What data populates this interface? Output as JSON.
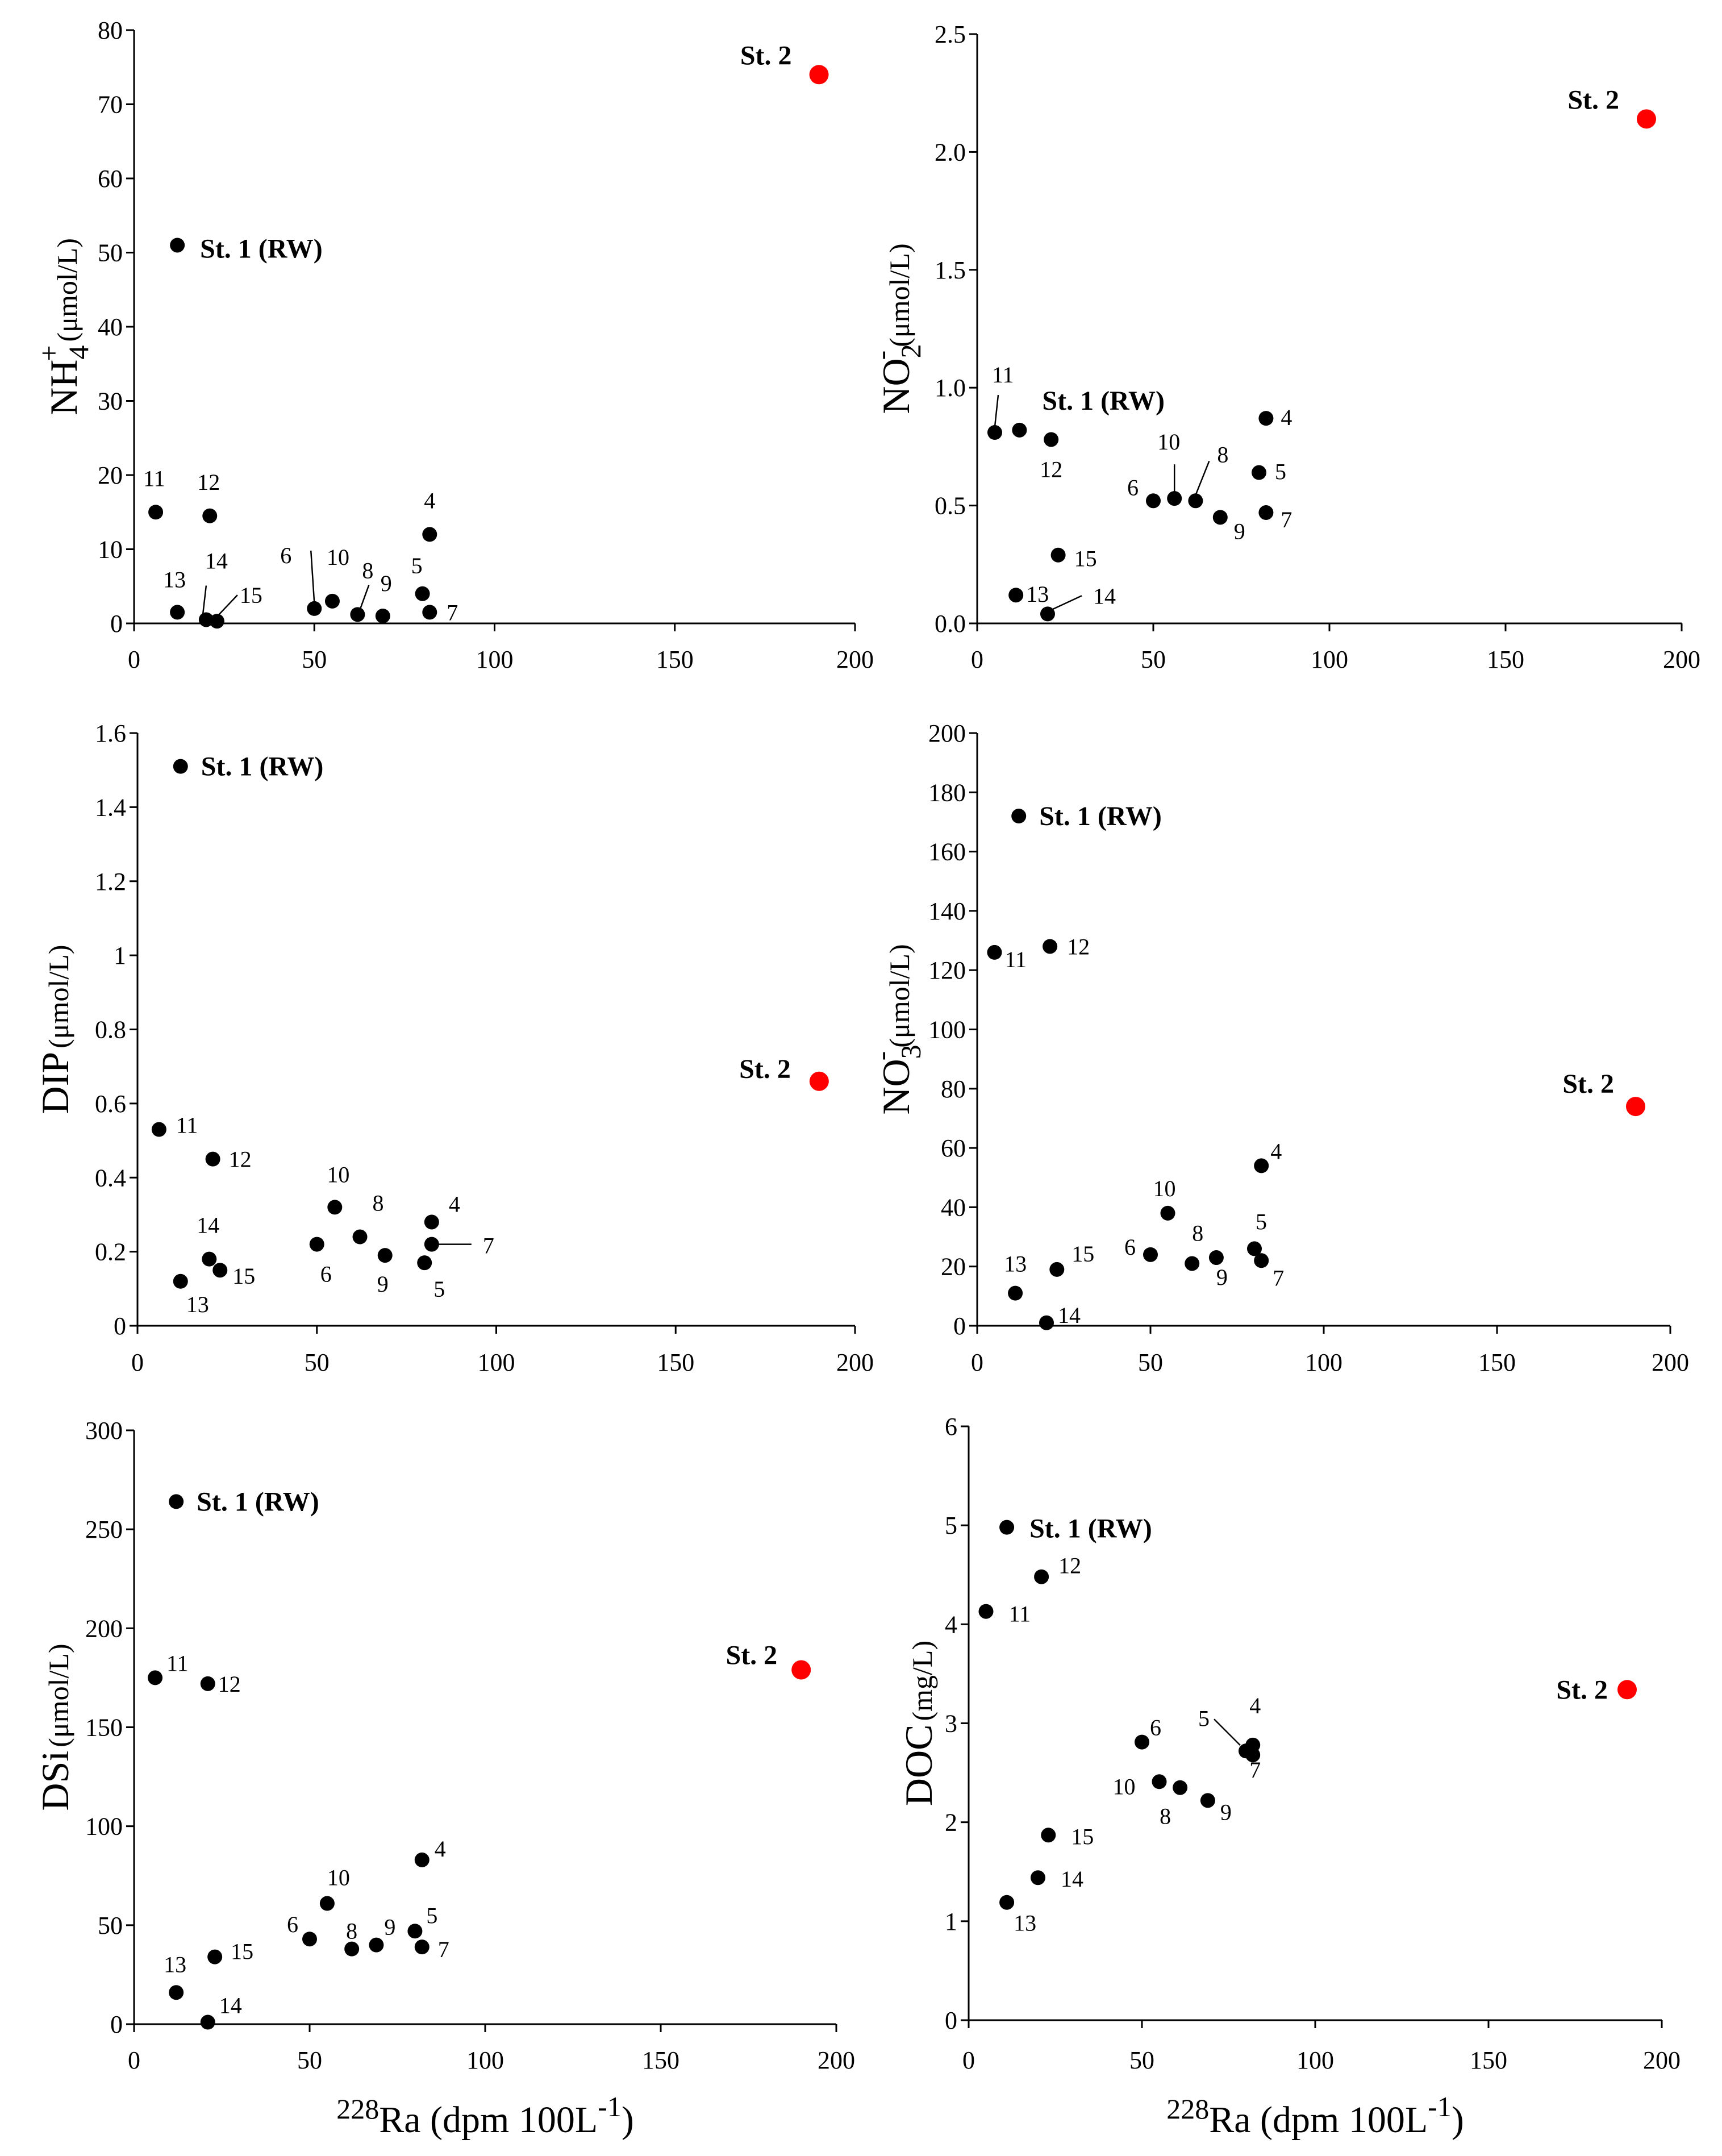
{
  "figure": {
    "x_axis_label": {
      "sup": "228",
      "main": "Ra (dpm 100L",
      "exp": "-1",
      "close": ")"
    }
  },
  "colors": {
    "station_normal": "#000000",
    "station_highlight": "#ff0000",
    "axis": "#000000"
  },
  "chart_data": [
    {
      "type": "scatter",
      "name": "nh4",
      "ylabel": {
        "main": "NH",
        "sub": "4",
        "sup": "+",
        "unit": "(μmol/L)"
      },
      "xlim": [
        0,
        200
      ],
      "ylim": [
        0,
        80
      ],
      "xticks": [
        0,
        50,
        100,
        150,
        200
      ],
      "yticks": [
        0,
        10,
        20,
        30,
        40,
        50,
        60,
        70,
        80
      ],
      "xtick_labels": [
        "0",
        "50",
        "100",
        "150",
        "200"
      ],
      "ytick_labels": [
        "0",
        "10",
        "20",
        "30",
        "40",
        "50",
        "60",
        "70",
        "80"
      ],
      "points": [
        {
          "label": "St. 2",
          "x": 190,
          "y": 74,
          "highlight": true
        },
        {
          "label": "St. 1 (RW)",
          "x": 12,
          "y": 51
        },
        {
          "label": "11",
          "x": 6,
          "y": 15
        },
        {
          "label": "12",
          "x": 21,
          "y": 14.5
        },
        {
          "label": "4",
          "x": 82,
          "y": 12
        },
        {
          "label": "13",
          "x": 12,
          "y": 1.5
        },
        {
          "label": "14",
          "x": 20,
          "y": 0.5
        },
        {
          "label": "15",
          "x": 23,
          "y": 0.3
        },
        {
          "label": "6",
          "x": 50,
          "y": 2
        },
        {
          "label": "10",
          "x": 55,
          "y": 3
        },
        {
          "label": "8",
          "x": 62,
          "y": 1.2
        },
        {
          "label": "9",
          "x": 69,
          "y": 1
        },
        {
          "label": "5",
          "x": 80,
          "y": 4
        },
        {
          "label": "7",
          "x": 82,
          "y": 1.5
        }
      ]
    },
    {
      "type": "scatter",
      "name": "no2",
      "ylabel": {
        "main": "NO",
        "sub": "2",
        "sup": "-",
        "unit": "(μmol/L)"
      },
      "xlim": [
        0,
        200
      ],
      "ylim": [
        0,
        2.5
      ],
      "xticks": [
        0,
        50,
        100,
        150,
        200
      ],
      "yticks": [
        0,
        0.5,
        1.0,
        1.5,
        2.0,
        2.5
      ],
      "xtick_labels": [
        "0",
        "50",
        "100",
        "150",
        "200"
      ],
      "ytick_labels": [
        "0.0",
        "0.5",
        "1.0",
        "1.5",
        "2.0",
        "2.5"
      ],
      "points": [
        {
          "label": "St. 2",
          "x": 190,
          "y": 2.14,
          "highlight": true
        },
        {
          "label": "11",
          "x": 5,
          "y": 0.81
        },
        {
          "label": "St. 1 (RW)",
          "x": 12,
          "y": 0.82
        },
        {
          "label": "12",
          "x": 21,
          "y": 0.78
        },
        {
          "label": "4",
          "x": 82,
          "y": 0.87
        },
        {
          "label": "5",
          "x": 80,
          "y": 0.64
        },
        {
          "label": "6",
          "x": 50,
          "y": 0.52
        },
        {
          "label": "10",
          "x": 56,
          "y": 0.53
        },
        {
          "label": "8",
          "x": 62,
          "y": 0.52
        },
        {
          "label": "9",
          "x": 69,
          "y": 0.45
        },
        {
          "label": "7",
          "x": 82,
          "y": 0.47
        },
        {
          "label": "15",
          "x": 23,
          "y": 0.29
        },
        {
          "label": "13",
          "x": 11,
          "y": 0.12
        },
        {
          "label": "14",
          "x": 20,
          "y": 0.04
        }
      ]
    },
    {
      "type": "scatter",
      "name": "dip",
      "ylabel": {
        "main": "DIP",
        "sub": "",
        "sup": "",
        "unit": "(μmol/L)"
      },
      "xlim": [
        0,
        200
      ],
      "ylim": [
        0,
        1.6
      ],
      "xticks": [
        0,
        50,
        100,
        150,
        200
      ],
      "yticks": [
        0,
        0.2,
        0.4,
        0.6,
        0.8,
        1.0,
        1.2,
        1.4,
        1.6
      ],
      "xtick_labels": [
        "0",
        "50",
        "100",
        "150",
        "200"
      ],
      "ytick_labels": [
        "0",
        "0.2",
        "0.4",
        "0.6",
        "0.8",
        "1",
        "1.2",
        "1.4",
        "1.6"
      ],
      "points": [
        {
          "label": "St. 1 (RW)",
          "x": 12,
          "y": 1.51
        },
        {
          "label": "St. 2",
          "x": 190,
          "y": 0.66,
          "highlight": true
        },
        {
          "label": "11",
          "x": 6,
          "y": 0.53
        },
        {
          "label": "12",
          "x": 21,
          "y": 0.45
        },
        {
          "label": "14",
          "x": 20,
          "y": 0.18
        },
        {
          "label": "15",
          "x": 23,
          "y": 0.15
        },
        {
          "label": "13",
          "x": 12,
          "y": 0.12
        },
        {
          "label": "10",
          "x": 55,
          "y": 0.32
        },
        {
          "label": "6",
          "x": 50,
          "y": 0.22
        },
        {
          "label": "8",
          "x": 62,
          "y": 0.24
        },
        {
          "label": "9",
          "x": 69,
          "y": 0.19
        },
        {
          "label": "4",
          "x": 82,
          "y": 0.28
        },
        {
          "label": "7",
          "x": 82,
          "y": 0.22
        },
        {
          "label": "5",
          "x": 80,
          "y": 0.17
        }
      ]
    },
    {
      "type": "scatter",
      "name": "no3",
      "ylabel": {
        "main": "NO",
        "sub": "3",
        "sup": "-",
        "unit": "(μmol/L)"
      },
      "xlim": [
        0,
        200
      ],
      "ylim": [
        0,
        200
      ],
      "xticks": [
        0,
        50,
        100,
        150,
        200
      ],
      "yticks": [
        0,
        20,
        40,
        60,
        80,
        100,
        120,
        140,
        160,
        180,
        200
      ],
      "xtick_labels": [
        "0",
        "50",
        "100",
        "150",
        "200"
      ],
      "ytick_labels": [
        "0",
        "20",
        "40",
        "60",
        "80",
        "100",
        "120",
        "140",
        "160",
        "180",
        "200"
      ],
      "points": [
        {
          "label": "St. 1 (RW)",
          "x": 12,
          "y": 172
        },
        {
          "label": "11",
          "x": 5,
          "y": 126
        },
        {
          "label": "12",
          "x": 21,
          "y": 128
        },
        {
          "label": "St. 2",
          "x": 190,
          "y": 74,
          "highlight": true
        },
        {
          "label": "4",
          "x": 82,
          "y": 54
        },
        {
          "label": "10",
          "x": 55,
          "y": 38
        },
        {
          "label": "6",
          "x": 50,
          "y": 24
        },
        {
          "label": "8",
          "x": 62,
          "y": 21
        },
        {
          "label": "9",
          "x": 69,
          "y": 23
        },
        {
          "label": "5",
          "x": 80,
          "y": 26
        },
        {
          "label": "7",
          "x": 82,
          "y": 22
        },
        {
          "label": "15",
          "x": 23,
          "y": 19
        },
        {
          "label": "13",
          "x": 11,
          "y": 11
        },
        {
          "label": "14",
          "x": 20,
          "y": 1
        }
      ]
    },
    {
      "type": "scatter",
      "name": "dsi",
      "ylabel": {
        "main": "DSi",
        "sub": "",
        "sup": "",
        "unit": "(μmol/L)"
      },
      "xlim": [
        0,
        200
      ],
      "ylim": [
        0,
        300
      ],
      "xticks": [
        0,
        50,
        100,
        150,
        200
      ],
      "yticks": [
        0,
        50,
        100,
        150,
        200,
        250,
        300
      ],
      "xtick_labels": [
        "0",
        "50",
        "100",
        "150",
        "200"
      ],
      "ytick_labels": [
        "0",
        "50",
        "100",
        "150",
        "200",
        "250",
        "300"
      ],
      "points": [
        {
          "label": "St. 1 (RW)",
          "x": 12,
          "y": 264
        },
        {
          "label": "11",
          "x": 6,
          "y": 175
        },
        {
          "label": "12",
          "x": 21,
          "y": 172
        },
        {
          "label": "St. 2",
          "x": 190,
          "y": 179,
          "highlight": true
        },
        {
          "label": "4",
          "x": 82,
          "y": 83
        },
        {
          "label": "10",
          "x": 55,
          "y": 61
        },
        {
          "label": "6",
          "x": 50,
          "y": 43
        },
        {
          "label": "8",
          "x": 62,
          "y": 38
        },
        {
          "label": "9",
          "x": 69,
          "y": 40
        },
        {
          "label": "5",
          "x": 80,
          "y": 47
        },
        {
          "label": "7",
          "x": 82,
          "y": 39
        },
        {
          "label": "15",
          "x": 23,
          "y": 34
        },
        {
          "label": "13",
          "x": 12,
          "y": 16
        },
        {
          "label": "14",
          "x": 21,
          "y": 1
        }
      ]
    },
    {
      "type": "scatter",
      "name": "doc",
      "ylabel": {
        "main": "DOC",
        "sub": "",
        "sup": "",
        "unit": "(mg/L)"
      },
      "xlim": [
        0,
        200
      ],
      "ylim": [
        0,
        6
      ],
      "xticks": [
        0,
        50,
        100,
        150,
        200
      ],
      "yticks": [
        0,
        1,
        2,
        3,
        4,
        5,
        6
      ],
      "xtick_labels": [
        "0",
        "50",
        "100",
        "150",
        "200"
      ],
      "ytick_labels": [
        "0",
        "1",
        "2",
        "3",
        "4",
        "5",
        "6"
      ],
      "points": [
        {
          "label": "St. 1 (RW)",
          "x": 11,
          "y": 4.98
        },
        {
          "label": "12",
          "x": 21,
          "y": 4.48
        },
        {
          "label": "11",
          "x": 5,
          "y": 4.13
        },
        {
          "label": "St. 2",
          "x": 190,
          "y": 3.34,
          "highlight": true
        },
        {
          "label": "6",
          "x": 50,
          "y": 2.81
        },
        {
          "label": "5",
          "x": 80,
          "y": 2.72
        },
        {
          "label": "4",
          "x": 82,
          "y": 2.78
        },
        {
          "label": "7",
          "x": 82,
          "y": 2.68
        },
        {
          "label": "10",
          "x": 55,
          "y": 2.41
        },
        {
          "label": "8",
          "x": 61,
          "y": 2.35
        },
        {
          "label": "9",
          "x": 69,
          "y": 2.22
        },
        {
          "label": "15",
          "x": 23,
          "y": 1.87
        },
        {
          "label": "14",
          "x": 20,
          "y": 1.44
        },
        {
          "label": "13",
          "x": 11,
          "y": 1.19
        }
      ]
    }
  ]
}
